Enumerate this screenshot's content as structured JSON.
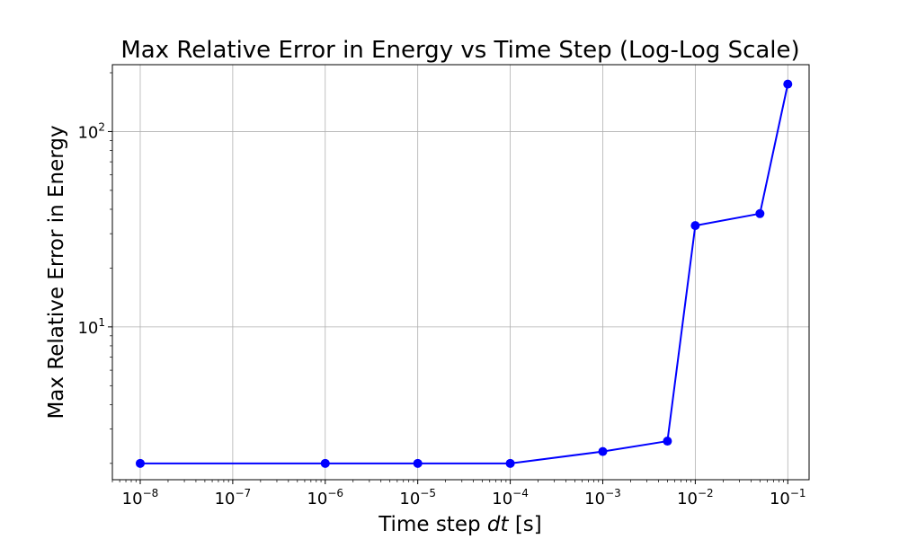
{
  "chart_data": {
    "type": "line",
    "title": "Max Relative Error in Energy vs Time Step (Log-Log Scale)",
    "xlabel_prefix": "Time step ",
    "xlabel_var": "dt",
    "xlabel_suffix": " [s]",
    "ylabel": "Max Relative Error in Energy",
    "x_scale": "log",
    "y_scale": "log",
    "xlim": [
      5e-09,
      0.17
    ],
    "ylim": [
      1.65,
      220
    ],
    "grid": true,
    "x_ticks": [
      {
        "value": 1e-08,
        "base": "10",
        "exp": "−8"
      },
      {
        "value": 1e-07,
        "base": "10",
        "exp": "−7"
      },
      {
        "value": 1e-06,
        "base": "10",
        "exp": "−6"
      },
      {
        "value": 1e-05,
        "base": "10",
        "exp": "−5"
      },
      {
        "value": 0.0001,
        "base": "10",
        "exp": "−4"
      },
      {
        "value": 0.001,
        "base": "10",
        "exp": "−3"
      },
      {
        "value": 0.01,
        "base": "10",
        "exp": "−2"
      },
      {
        "value": 0.1,
        "base": "10",
        "exp": "−1"
      }
    ],
    "y_ticks": [
      {
        "value": 10,
        "base": "10",
        "exp": "1"
      },
      {
        "value": 100,
        "base": "10",
        "exp": "2"
      }
    ],
    "series": [
      {
        "color": "#0000ff",
        "x": [
          1e-08,
          1e-06,
          1e-05,
          0.0001,
          0.001,
          0.005,
          0.01,
          0.05,
          0.1
        ],
        "y": [
          2.0,
          2.0,
          2.0,
          2.0,
          2.3,
          2.6,
          33,
          38,
          175
        ]
      }
    ]
  }
}
